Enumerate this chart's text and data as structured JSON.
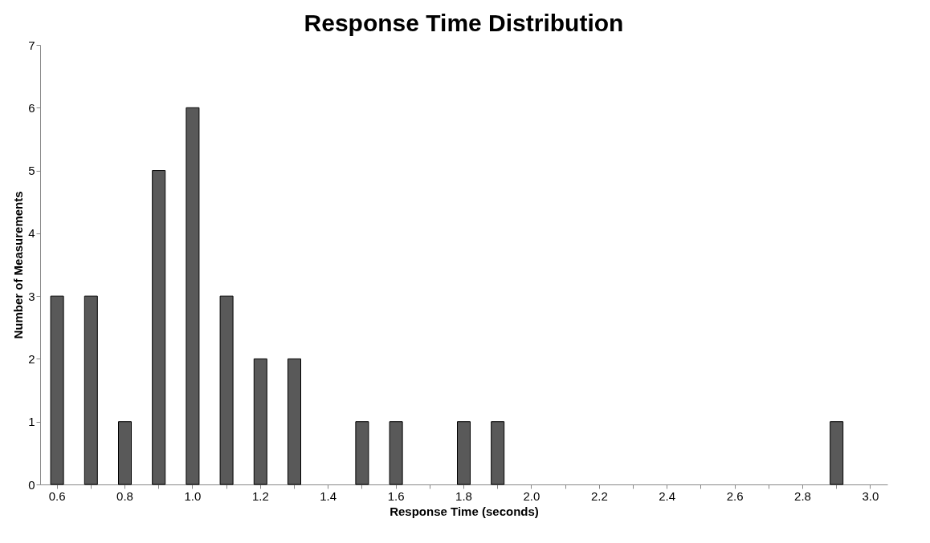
{
  "chart_data": {
    "type": "bar",
    "title": "Response Time Distribution",
    "xlabel": "Response Time (seconds)",
    "ylabel": "Number of Measurements",
    "categories": [
      "0.6",
      null,
      "0.8",
      null,
      "1.0",
      null,
      "1.2",
      null,
      "1.4",
      null,
      "1.6",
      null,
      "1.8",
      null,
      "2.0",
      null,
      "2.2",
      null,
      "2.4",
      null,
      "2.6",
      null,
      "2.8",
      null,
      "3.0"
    ],
    "values": [
      3,
      3,
      1,
      5,
      6,
      3,
      2,
      2,
      0,
      1,
      1,
      0,
      1,
      1,
      0,
      0,
      0,
      0,
      0,
      0,
      0,
      0,
      0,
      1,
      0
    ],
    "color": "#595959",
    "ylim": [
      0,
      7
    ],
    "yticks": [
      0,
      1,
      2,
      3,
      4,
      5,
      6,
      7
    ],
    "grid": false
  }
}
